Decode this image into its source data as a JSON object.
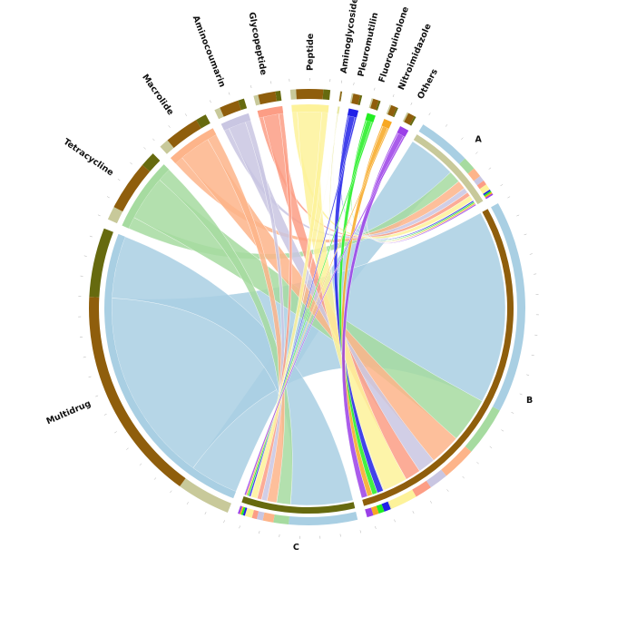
{
  "chart_data": {
    "type": "chord",
    "title": "",
    "samples": [
      {
        "name": "A",
        "color": "#c8c99a"
      },
      {
        "name": "B",
        "color": "#8f5e0c"
      },
      {
        "name": "C",
        "color": "#666a0f"
      }
    ],
    "classes": [
      {
        "name": "Multidrug",
        "color": "#a9cfe3",
        "outer_color": "#8f5e0c"
      },
      {
        "name": "Tetracycline",
        "color": "#a6dba0",
        "outer_color": "#666a0f"
      },
      {
        "name": "Macrolide",
        "color": "#fdb48a",
        "outer_color": "#8f5e0c"
      },
      {
        "name": "Aminocoumarin",
        "color": "#c9c6e2",
        "outer_color": "#666a0f"
      },
      {
        "name": "Glycopeptide",
        "color": "#fc9d85",
        "outer_color": "#8f5e0c"
      },
      {
        "name": "Peptide",
        "color": "#fdf29a",
        "outer_color": "#666a0f"
      },
      {
        "name": "Aminoglycoside",
        "color": "#e6e6a0",
        "outer_color": "#c8c99a"
      },
      {
        "name": "Pleuromutilin",
        "color": "#2121e8",
        "outer_color": "#8f5e0c"
      },
      {
        "name": "Fluoroquinolone",
        "color": "#22ee22",
        "outer_color": "#666a0f"
      },
      {
        "name": "Nitroimidazole",
        "color": "#f7a823",
        "outer_color": "#8f5e0c"
      },
      {
        "name": "Others",
        "color": "#9b40e8",
        "outer_color": "#666a0f"
      }
    ],
    "flows": [
      {
        "class": "Multidrug",
        "A": 1400,
        "B": 5600,
        "C": 1800
      },
      {
        "class": "Tetracycline",
        "A": 350,
        "B": 1300,
        "C": 400
      },
      {
        "class": "Macrolide",
        "A": 250,
        "B": 900,
        "C": 280
      },
      {
        "class": "Aminocoumarin",
        "A": 150,
        "B": 500,
        "C": 160
      },
      {
        "class": "Glycopeptide",
        "A": 120,
        "B": 450,
        "C": 130
      },
      {
        "class": "Peptide",
        "A": 150,
        "B": 700,
        "C": 180
      },
      {
        "class": "Aminoglycoside",
        "A": 12,
        "B": 30,
        "C": 10
      },
      {
        "class": "Pleuromutilin",
        "A": 40,
        "B": 180,
        "C": 50
      },
      {
        "class": "Fluoroquinolone",
        "A": 40,
        "B": 150,
        "C": 50
      },
      {
        "class": "Nitroimidazole",
        "A": 40,
        "B": 150,
        "C": 40
      },
      {
        "class": "Others",
        "A": 40,
        "B": 170,
        "C": 50
      }
    ],
    "tick_step": 500
  }
}
